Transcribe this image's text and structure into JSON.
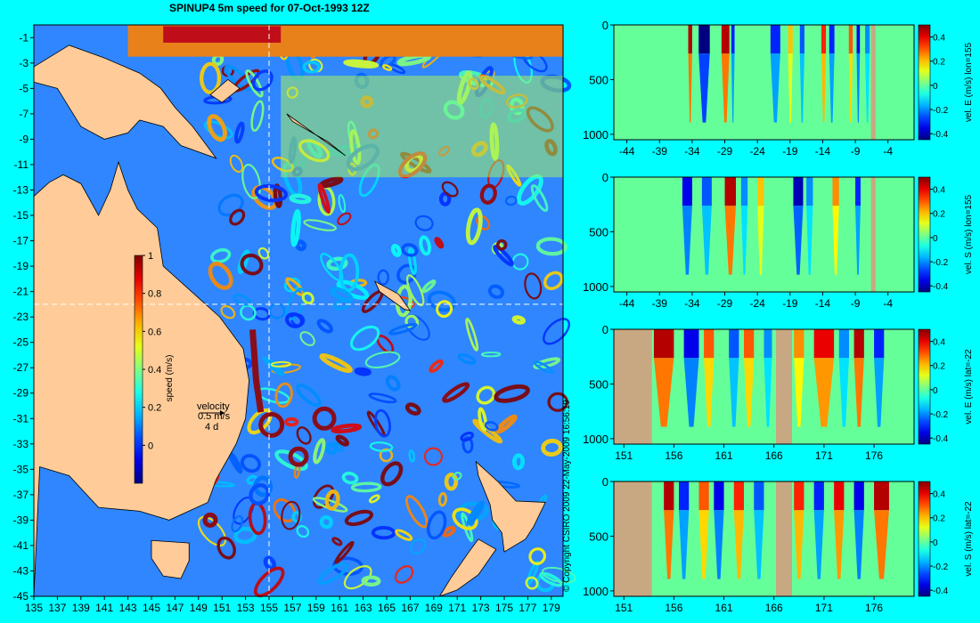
{
  "title": "SPINUP4 5m speed for 07-Oct-1993 12Z",
  "copyright": "© Copyright CSIRO 2009   22-May-2009 16:56:19",
  "colors": {
    "background": "#00ffff",
    "land": "#ffcc99",
    "land_section": "#c8a882",
    "guide_line": "#ffffff"
  },
  "chart_data": [
    {
      "type": "heatmap",
      "id": "map",
      "title": "SPINUP4 5m speed for 07-Oct-1993 12Z",
      "xlabel": "",
      "ylabel": "",
      "xlim": [
        135,
        180
      ],
      "ylim": [
        -45,
        0
      ],
      "x_ticks": [
        "135",
        "137",
        "139",
        "141",
        "143",
        "145",
        "147",
        "149",
        "151",
        "153",
        "155",
        "157",
        "159",
        "161",
        "163",
        "165",
        "167",
        "169",
        "171",
        "173",
        "175",
        "177",
        "179"
      ],
      "y_ticks": [
        "-1",
        "-3",
        "-5",
        "-7",
        "-9",
        "-11",
        "-13",
        "-15",
        "-17",
        "-19",
        "-21",
        "-23",
        "-25",
        "-27",
        "-29",
        "-31",
        "-33",
        "-35",
        "-37",
        "-39",
        "-41",
        "-43",
        "-45"
      ],
      "section_lines": {
        "lon": 155,
        "lat": -22
      },
      "colorbar": {
        "label": "speed (m/s)",
        "ticks": [
          "0",
          "0.2",
          "0.4",
          "0.6",
          "0.8",
          "1"
        ],
        "range": [
          -0.2,
          1
        ]
      },
      "velocity_key": {
        "label": "velocity",
        "speed": "0.5 m/s",
        "time": "4 d"
      }
    },
    {
      "type": "heatmap",
      "id": "section-1",
      "colorbar_label": "vel. E (m/s) lon=155",
      "x_ticks": [
        "-44",
        "-39",
        "-34",
        "-29",
        "-24",
        "-19",
        "-14",
        "-9",
        "-4"
      ],
      "xlim": [
        -46,
        0
      ],
      "y_ticks": [
        "0",
        "500",
        "1000"
      ],
      "ylim": [
        0,
        1050
      ],
      "cbar_ticks": [
        "0.4",
        "0.2",
        "0",
        "-0.2",
        "-0.4"
      ],
      "stripes": [
        [
          -34.6,
          -34,
          0.45
        ],
        [
          -33,
          -31.3,
          -0.45
        ],
        [
          -29.5,
          -28.3,
          0.45
        ],
        [
          -28,
          -27.5,
          -0.3
        ],
        [
          -22,
          -20.5,
          -0.3
        ],
        [
          -19.3,
          -18.6,
          0.2
        ],
        [
          -17.5,
          -16.8,
          -0.25
        ],
        [
          -14.2,
          -13.5,
          0.35
        ],
        [
          -13,
          -12.2,
          -0.3
        ],
        [
          -10,
          -9.4,
          0.3
        ],
        [
          -8.8,
          -8.3,
          -0.35
        ],
        [
          -7.5,
          -6.8,
          -0.2
        ]
      ],
      "land": [
        [
          -6.6,
          -5.9
        ]
      ]
    },
    {
      "type": "heatmap",
      "id": "section-2",
      "colorbar_label": "vel. S (m/s) lon=155",
      "x_ticks": [
        "-44",
        "-39",
        "-34",
        "-29",
        "-24",
        "-19",
        "-14",
        "-9",
        "-4"
      ],
      "xlim": [
        -46,
        0
      ],
      "y_ticks": [
        "0",
        "500",
        "1000"
      ],
      "ylim": [
        0,
        1050
      ],
      "cbar_ticks": [
        "0.4",
        "0.2",
        "0",
        "-0.2",
        "-0.4"
      ],
      "stripes": [
        [
          -35.5,
          -34,
          -0.35
        ],
        [
          -32.5,
          -31,
          -0.25
        ],
        [
          -29,
          -27.3,
          0.45
        ],
        [
          -26.5,
          -25.5,
          -0.2
        ],
        [
          -24,
          -23,
          0.2
        ],
        [
          -18.5,
          -17,
          -0.4
        ],
        [
          -16.5,
          -15.5,
          -0.2
        ],
        [
          -12.5,
          -11.5,
          0.25
        ],
        [
          -9,
          -8.2,
          -0.3
        ]
      ],
      "land": [
        [
          -6.6,
          -5.9
        ]
      ]
    },
    {
      "type": "heatmap",
      "id": "section-3",
      "colorbar_label": "vel. E (m/s) lat=-22",
      "x_ticks": [
        "151",
        "156",
        "161",
        "166",
        "171",
        "176"
      ],
      "xlim": [
        150,
        180
      ],
      "y_ticks": [
        "0",
        "500",
        "1000"
      ],
      "ylim": [
        0,
        1050
      ],
      "cbar_ticks": [
        "0.4",
        "0.2",
        "0",
        "-0.2",
        "-0.4"
      ],
      "stripes": [
        [
          154,
          156,
          0.45
        ],
        [
          157,
          158.5,
          -0.35
        ],
        [
          159,
          160,
          0.3
        ],
        [
          161.5,
          162.5,
          -0.25
        ],
        [
          163,
          164,
          0.3
        ],
        [
          165,
          165.8,
          -0.2
        ],
        [
          168,
          169,
          0.25
        ],
        [
          170,
          172,
          0.4
        ],
        [
          172.5,
          173.5,
          -0.2
        ],
        [
          174,
          175,
          0.45
        ],
        [
          176,
          177,
          -0.3
        ]
      ],
      "land": [
        [
          150,
          153.8
        ],
        [
          166.2,
          167.8
        ]
      ]
    },
    {
      "type": "heatmap",
      "id": "section-4",
      "colorbar_label": "vel. S (m/s) lat=-22",
      "x_ticks": [
        "151",
        "156",
        "161",
        "166",
        "171",
        "176"
      ],
      "xlim": [
        150,
        180
      ],
      "y_ticks": [
        "0",
        "500",
        "1000"
      ],
      "ylim": [
        0,
        1050
      ],
      "cbar_ticks": [
        "0.4",
        "0.2",
        "0",
        "-0.2",
        "-0.4"
      ],
      "stripes": [
        [
          155,
          156,
          0.45
        ],
        [
          156.5,
          157.5,
          -0.3
        ],
        [
          158.5,
          159.5,
          0.3
        ],
        [
          160,
          161,
          -0.35
        ],
        [
          162,
          163,
          0.35
        ],
        [
          164,
          165,
          -0.25
        ],
        [
          168,
          169,
          0.35
        ],
        [
          170,
          171,
          -0.3
        ],
        [
          172,
          173,
          0.4
        ],
        [
          174,
          175,
          -0.35
        ],
        [
          176,
          177.5,
          0.45
        ]
      ],
      "land": [
        [
          150,
          153.8
        ],
        [
          166.2,
          167.8
        ]
      ]
    }
  ]
}
